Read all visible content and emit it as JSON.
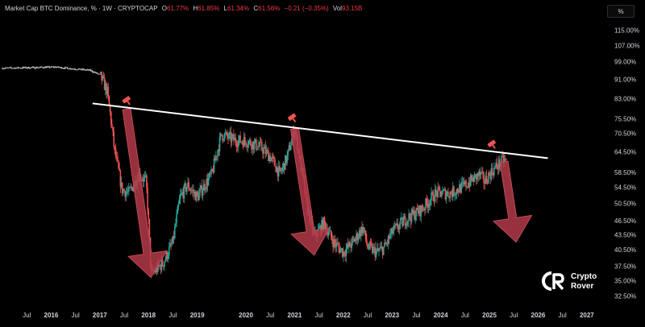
{
  "header": {
    "title": "Market Cap BTC Dominance, % · 1W · CRYPTOCAP",
    "open_label": "O",
    "open_value": "61.77%",
    "high_label": "H",
    "high_value": "61.85%",
    "low_label": "L",
    "low_value": "61.34%",
    "close_label": "C",
    "close_value": "61.56%",
    "change": "−0.21 (−0.35%)",
    "vol_label": "Vol",
    "vol_value": "93.15B"
  },
  "unit_button": "%",
  "colors": {
    "background": "#000000",
    "up": "#26a69a",
    "down": "#ef5350",
    "trendline": "#ffffff",
    "arrow": "#b03a48"
  },
  "logo": {
    "icon": "crypto-rover-logo-icon",
    "line1": "Crypto",
    "line2": "Rover"
  },
  "chart_data": {
    "type": "candlestick",
    "title": "Market Cap BTC Dominance, % · 1W · CRYPTOCAP",
    "y_scale": "log",
    "ylim": [
      31,
      122
    ],
    "y_ticks": [
      "115.00%",
      "107.00%",
      "99.00%",
      "91.00%",
      "83.00%",
      "75.50%",
      "70.50%",
      "64.50%",
      "58.50%",
      "54.50%",
      "50.50%",
      "46.50%",
      "43.50%",
      "40.50%",
      "37.50%",
      "35.00%",
      "32.50%"
    ],
    "x_ticks": [
      {
        "label": "Jul",
        "t": 2015.5,
        "year": false
      },
      {
        "label": "2016",
        "t": 2016.0,
        "year": true
      },
      {
        "label": "Jul",
        "t": 2016.5,
        "year": false
      },
      {
        "label": "2017",
        "t": 2017.0,
        "year": true
      },
      {
        "label": "Jul",
        "t": 2017.5,
        "year": false
      },
      {
        "label": "2018",
        "t": 2018.0,
        "year": true
      },
      {
        "label": "Jul",
        "t": 2018.5,
        "year": false
      },
      {
        "label": "2019",
        "t": 2019.0,
        "year": true
      },
      {
        "label": "2020",
        "t": 2020.0,
        "year": true
      },
      {
        "label": "Jul",
        "t": 2020.5,
        "year": false
      },
      {
        "label": "2021",
        "t": 2021.0,
        "year": true
      },
      {
        "label": "Jul",
        "t": 2021.5,
        "year": false
      },
      {
        "label": "2022",
        "t": 2022.0,
        "year": true
      },
      {
        "label": "Jul",
        "t": 2022.5,
        "year": false
      },
      {
        "label": "2023",
        "t": 2023.0,
        "year": true
      },
      {
        "label": "Jul",
        "t": 2023.5,
        "year": false
      },
      {
        "label": "2024",
        "t": 2024.0,
        "year": true
      },
      {
        "label": "Jul",
        "t": 2024.5,
        "year": false
      },
      {
        "label": "2025",
        "t": 2025.0,
        "year": true
      },
      {
        "label": "Jul",
        "t": 2025.5,
        "year": false
      },
      {
        "label": "2026",
        "t": 2026.0,
        "year": true
      },
      {
        "label": "Jul",
        "t": 2026.5,
        "year": false
      },
      {
        "label": "2027",
        "t": 2027.0,
        "year": true
      }
    ],
    "xlim": [
      2014.95,
      2027.4
    ],
    "price_path": [
      [
        2015.0,
        96
      ],
      [
        2016.1,
        96.5
      ],
      [
        2016.8,
        95
      ],
      [
        2017.0,
        93
      ],
      [
        2017.15,
        86
      ],
      [
        2017.3,
        65
      ],
      [
        2017.45,
        54
      ],
      [
        2017.6,
        53
      ],
      [
        2017.8,
        58
      ],
      [
        2017.95,
        56
      ],
      [
        2018.05,
        36
      ],
      [
        2018.3,
        38
      ],
      [
        2018.5,
        42
      ],
      [
        2018.65,
        52
      ],
      [
        2018.8,
        55
      ],
      [
        2019.0,
        52
      ],
      [
        2019.3,
        58
      ],
      [
        2019.5,
        70
      ],
      [
        2019.8,
        68
      ],
      [
        2020.0,
        68
      ],
      [
        2020.3,
        66
      ],
      [
        2020.5,
        63
      ],
      [
        2020.7,
        58
      ],
      [
        2020.85,
        63
      ],
      [
        2021.0,
        72
      ],
      [
        2021.1,
        63
      ],
      [
        2021.25,
        50
      ],
      [
        2021.4,
        43
      ],
      [
        2021.6,
        46
      ],
      [
        2021.8,
        42
      ],
      [
        2022.0,
        40
      ],
      [
        2022.2,
        42
      ],
      [
        2022.4,
        45
      ],
      [
        2022.5,
        41
      ],
      [
        2022.7,
        40
      ],
      [
        2022.85,
        41
      ],
      [
        2023.0,
        44
      ],
      [
        2023.3,
        47
      ],
      [
        2023.6,
        49
      ],
      [
        2023.9,
        53
      ],
      [
        2024.2,
        53
      ],
      [
        2024.5,
        55
      ],
      [
        2024.8,
        58
      ],
      [
        2024.9,
        56
      ],
      [
        2025.0,
        58
      ],
      [
        2025.2,
        61
      ],
      [
        2025.3,
        62
      ],
      [
        2025.35,
        61.56
      ]
    ],
    "trendline": {
      "from": [
        2016.85,
        81.2
      ],
      "to": [
        2026.2,
        62.6
      ]
    },
    "arrows": [
      {
        "from": [
          2017.55,
          79
        ],
        "to": [
          2018.05,
          35.5
        ]
      },
      {
        "from": [
          2021.0,
          72
        ],
        "to": [
          2021.4,
          39.5
        ]
      },
      {
        "from": [
          2025.3,
          61.5
        ],
        "to": [
          2025.55,
          42
        ]
      }
    ],
    "markers": [
      {
        "t": 2017.55,
        "v": 82.5
      },
      {
        "t": 2020.95,
        "v": 76
      },
      {
        "t": 2025.05,
        "v": 67
      }
    ]
  }
}
